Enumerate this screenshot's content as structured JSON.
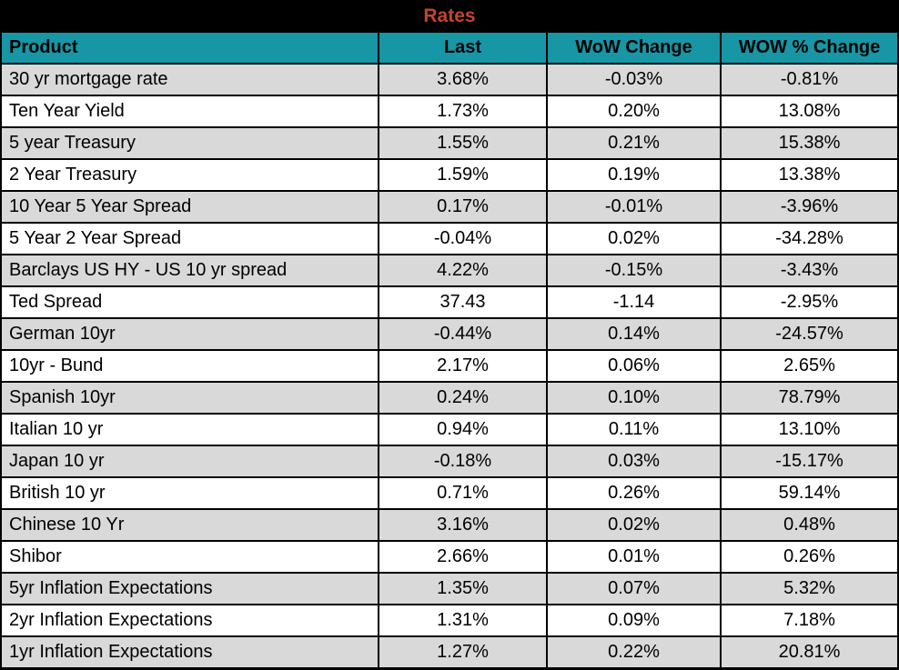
{
  "title": "Rates",
  "colors": {
    "title_bg": "#000000",
    "title_text": "#C5452E",
    "header_bg": "#1796A6",
    "header_text": "#000000",
    "row_alt": "#D9D9D9",
    "row_base": "#FFFFFF",
    "grid": "#000000"
  },
  "chart_data": {
    "type": "table",
    "title": "Rates",
    "columns": [
      "Product",
      "Last",
      "WoW Change",
      "WOW % Change"
    ],
    "rows": [
      [
        "30 yr mortgage rate",
        "3.68%",
        "-0.03%",
        "-0.81%"
      ],
      [
        "Ten Year Yield",
        "1.73%",
        "0.20%",
        "13.08%"
      ],
      [
        "5 year Treasury",
        "1.55%",
        "0.21%",
        "15.38%"
      ],
      [
        "2 Year Treasury",
        "1.59%",
        "0.19%",
        "13.38%"
      ],
      [
        "10 Year 5 Year Spread",
        "0.17%",
        "-0.01%",
        "-3.96%"
      ],
      [
        "5 Year 2 Year Spread",
        "-0.04%",
        "0.02%",
        "-34.28%"
      ],
      [
        "Barclays US HY - US 10 yr spread",
        "4.22%",
        "-0.15%",
        "-3.43%"
      ],
      [
        "Ted Spread",
        "37.43",
        "-1.14",
        "-2.95%"
      ],
      [
        "German 10yr",
        "-0.44%",
        "0.14%",
        "-24.57%"
      ],
      [
        "10yr - Bund",
        "2.17%",
        "0.06%",
        "2.65%"
      ],
      [
        "Spanish 10yr",
        "0.24%",
        "0.10%",
        "78.79%"
      ],
      [
        "Italian 10 yr",
        "0.94%",
        "0.11%",
        "13.10%"
      ],
      [
        "Japan 10 yr",
        "-0.18%",
        "0.03%",
        "-15.17%"
      ],
      [
        "British 10 yr",
        "0.71%",
        "0.26%",
        "59.14%"
      ],
      [
        "Chinese 10 Yr",
        "3.16%",
        "0.02%",
        "0.48%"
      ],
      [
        "Shibor",
        "2.66%",
        "0.01%",
        "0.26%"
      ],
      [
        "5yr Inflation Expectations",
        "1.35%",
        "0.07%",
        "5.32%"
      ],
      [
        "2yr Inflation Expectations",
        "1.31%",
        "0.09%",
        "7.18%"
      ],
      [
        "1yr Inflation Expectations",
        "1.27%",
        "0.22%",
        "20.81%"
      ]
    ]
  }
}
